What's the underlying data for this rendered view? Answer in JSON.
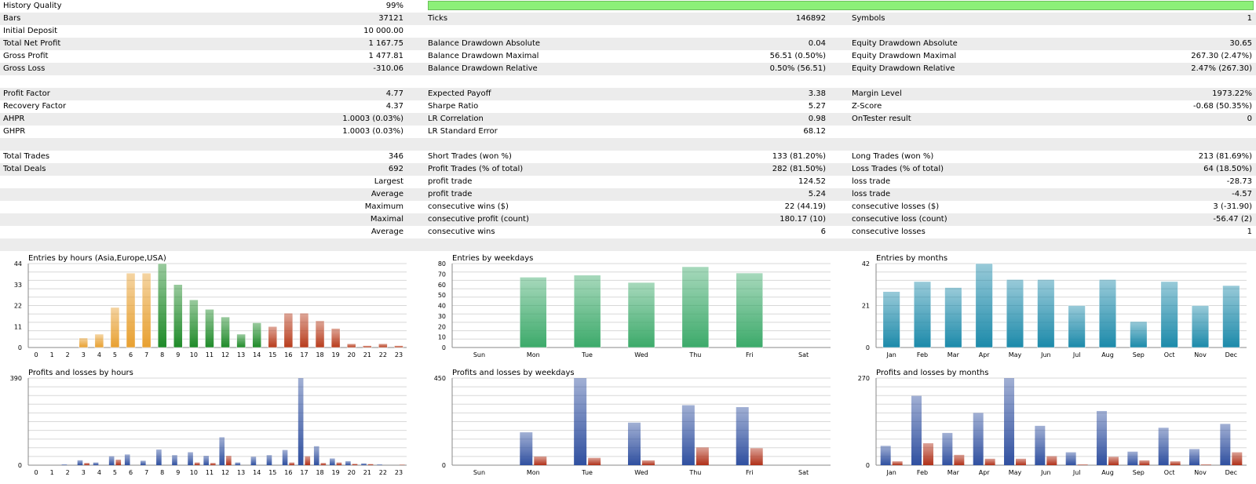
{
  "stats": {
    "rows": [
      {
        "alt": false,
        "c1": [
          "History Quality",
          "99%"
        ],
        "c2": [
          "",
          ""
        ],
        "c3": [
          "",
          ""
        ],
        "bar": true
      },
      {
        "alt": true,
        "c1": [
          "Bars",
          "37121"
        ],
        "c2": [
          "Ticks",
          "146892"
        ],
        "c3": [
          "Symbols",
          "1"
        ]
      },
      {
        "alt": false,
        "c1": [
          "Initial Deposit",
          "10 000.00"
        ],
        "c2": [
          "",
          ""
        ],
        "c3": [
          "",
          ""
        ]
      },
      {
        "alt": true,
        "c1": [
          "Total Net Profit",
          "1 167.75"
        ],
        "c2": [
          "Balance Drawdown Absolute",
          "0.04"
        ],
        "c3": [
          "Equity Drawdown Absolute",
          "30.65"
        ]
      },
      {
        "alt": false,
        "c1": [
          "Gross Profit",
          "1 477.81"
        ],
        "c2": [
          "Balance Drawdown Maximal",
          "56.51 (0.50%)"
        ],
        "c3": [
          "Equity Drawdown Maximal",
          "267.30 (2.47%)"
        ]
      },
      {
        "alt": true,
        "c1": [
          "Gross Loss",
          "-310.06"
        ],
        "c2": [
          "Balance Drawdown Relative",
          "0.50% (56.51)"
        ],
        "c3": [
          "Equity Drawdown Relative",
          "2.47% (267.30)"
        ]
      },
      {
        "alt": false,
        "c1": [
          "",
          ""
        ],
        "c2": [
          "",
          ""
        ],
        "c3": [
          "",
          ""
        ]
      },
      {
        "alt": true,
        "c1": [
          "Profit Factor",
          "4.77"
        ],
        "c2": [
          "Expected Payoff",
          "3.38"
        ],
        "c3": [
          "Margin Level",
          "1973.22%"
        ]
      },
      {
        "alt": false,
        "c1": [
          "Recovery Factor",
          "4.37"
        ],
        "c2": [
          "Sharpe Ratio",
          "5.27"
        ],
        "c3": [
          "Z-Score",
          "-0.68 (50.35%)"
        ]
      },
      {
        "alt": true,
        "c1": [
          "AHPR",
          "1.0003 (0.03%)"
        ],
        "c2": [
          "LR Correlation",
          "0.98"
        ],
        "c3": [
          "OnTester result",
          "0"
        ]
      },
      {
        "alt": false,
        "c1": [
          "GHPR",
          "1.0003 (0.03%)"
        ],
        "c2": [
          "LR Standard Error",
          "68.12"
        ],
        "c3": [
          "",
          ""
        ]
      },
      {
        "alt": true,
        "c1": [
          "",
          ""
        ],
        "c2": [
          "",
          ""
        ],
        "c3": [
          "",
          ""
        ]
      },
      {
        "alt": false,
        "c1": [
          "Total Trades",
          "346"
        ],
        "c2": [
          "Short Trades (won %)",
          "133 (81.20%)"
        ],
        "c3": [
          "Long Trades (won %)",
          "213 (81.69%)"
        ]
      },
      {
        "alt": true,
        "c1": [
          "Total Deals",
          "692"
        ],
        "c2": [
          "Profit Trades (% of total)",
          "282 (81.50%)"
        ],
        "c3": [
          "Loss Trades (% of total)",
          "64 (18.50%)"
        ]
      },
      {
        "alt": false,
        "c1": [
          "",
          "Largest"
        ],
        "c2": [
          "profit trade",
          "124.52"
        ],
        "c3": [
          "loss trade",
          "-28.73"
        ]
      },
      {
        "alt": true,
        "c1": [
          "",
          "Average"
        ],
        "c2": [
          "profit trade",
          "5.24"
        ],
        "c3": [
          "loss trade",
          "-4.57"
        ]
      },
      {
        "alt": false,
        "c1": [
          "",
          "Maximum"
        ],
        "c2": [
          "consecutive wins ($)",
          "22 (44.19)"
        ],
        "c3": [
          "consecutive losses ($)",
          "3 (-31.90)"
        ]
      },
      {
        "alt": true,
        "c1": [
          "",
          "Maximal"
        ],
        "c2": [
          "consecutive profit (count)",
          "180.17 (10)"
        ],
        "c3": [
          "consecutive loss (count)",
          "-56.47 (2)"
        ]
      },
      {
        "alt": false,
        "c1": [
          "",
          "Average"
        ],
        "c2": [
          "consecutive wins",
          "6"
        ],
        "c3": [
          "consecutive losses",
          "1"
        ]
      },
      {
        "alt": true,
        "c1": [
          "",
          ""
        ],
        "c2": [
          "",
          ""
        ],
        "c3": [
          "",
          ""
        ]
      }
    ]
  },
  "colors": {
    "bar_orange": "#e8a030",
    "bar_green": "#1e8a28",
    "bar_red": "#b83c1c",
    "bar_mint": "#3caa6a",
    "bar_teal": "#1c8aaa",
    "bar_blue": "#3050a0",
    "bar_loss": "#b03018"
  },
  "chart_data": [
    {
      "id": "entries-hours",
      "type": "bar",
      "title": "Entries by hours (Asia,Europe,USA)",
      "categories": [
        "0",
        "1",
        "2",
        "3",
        "4",
        "5",
        "6",
        "7",
        "8",
        "9",
        "10",
        "11",
        "12",
        "13",
        "14",
        "15",
        "16",
        "17",
        "18",
        "19",
        "20",
        "21",
        "22",
        "23"
      ],
      "values": [
        0,
        0,
        0,
        5,
        7,
        21,
        39,
        39,
        44,
        33,
        25,
        20,
        16,
        7,
        13,
        11,
        18,
        18,
        14,
        10,
        2,
        1,
        2,
        1
      ],
      "bar_colors": [
        "orange",
        "orange",
        "orange",
        "orange",
        "orange",
        "orange",
        "orange",
        "orange",
        "green",
        "green",
        "green",
        "green",
        "green",
        "green",
        "green",
        "red",
        "red",
        "red",
        "red",
        "red",
        "red",
        "red",
        "red",
        "red"
      ],
      "ylim": [
        0,
        44
      ],
      "yticks": [
        "0",
        "11",
        "22",
        "33",
        "44"
      ]
    },
    {
      "id": "entries-weekdays",
      "type": "bar",
      "title": "Entries by weekdays",
      "categories": [
        "Sun",
        "Mon",
        "Tue",
        "Wed",
        "Thu",
        "Fri",
        "Sat"
      ],
      "values": [
        0,
        67,
        69,
        62,
        77,
        71,
        0
      ],
      "ylim": [
        0,
        80
      ],
      "yticks": [
        "0",
        "10",
        "20",
        "30",
        "40",
        "50",
        "60",
        "70",
        "80"
      ]
    },
    {
      "id": "entries-months",
      "type": "bar",
      "title": "Entries by months",
      "categories": [
        "Jan",
        "Feb",
        "Mar",
        "Apr",
        "May",
        "Jun",
        "Jul",
        "Aug",
        "Sep",
        "Oct",
        "Nov",
        "Dec"
      ],
      "values": [
        28,
        33,
        30,
        42,
        34,
        34,
        21,
        34,
        13,
        33,
        21,
        31
      ],
      "ylim": [
        0,
        42
      ],
      "yticks": [
        "0",
        "21",
        "42"
      ]
    },
    {
      "id": "pl-hours",
      "type": "bar",
      "title": "Profits and losses by hours",
      "categories": [
        "0",
        "1",
        "2",
        "3",
        "4",
        "5",
        "6",
        "7",
        "8",
        "9",
        "10",
        "11",
        "12",
        "13",
        "14",
        "15",
        "16",
        "17",
        "18",
        "19",
        "20",
        "21",
        "22",
        "23"
      ],
      "series": [
        {
          "values": [
            0,
            0,
            3,
            22,
            12,
            40,
            48,
            20,
            70,
            45,
            58,
            42,
            125,
            12,
            38,
            45,
            68,
            390,
            85,
            30,
            18,
            8,
            3,
            0
          ]
        },
        {
          "values": [
            0,
            0,
            0,
            10,
            0,
            25,
            0,
            0,
            0,
            0,
            12,
            10,
            42,
            0,
            0,
            0,
            12,
            40,
            10,
            12,
            6,
            5,
            0,
            2
          ]
        }
      ],
      "ylim": [
        0,
        390
      ],
      "yticks": [
        "0",
        "390"
      ]
    },
    {
      "id": "pl-weekdays",
      "type": "bar",
      "title": "Profits and losses by weekdays",
      "categories": [
        "Sun",
        "Mon",
        "Tue",
        "Wed",
        "Thu",
        "Fri",
        "Sat"
      ],
      "series": [
        {
          "values": [
            0,
            170,
            450,
            220,
            310,
            300,
            0
          ]
        },
        {
          "values": [
            0,
            45,
            38,
            25,
            92,
            88,
            0
          ]
        }
      ],
      "ylim": [
        0,
        450
      ],
      "yticks": [
        "0",
        "450"
      ]
    },
    {
      "id": "pl-months",
      "type": "bar",
      "title": "Profits and losses by months",
      "categories": [
        "Jan",
        "Feb",
        "Mar",
        "Apr",
        "May",
        "Jun",
        "Jul",
        "Aug",
        "Sep",
        "Oct",
        "Nov",
        "Dec"
      ],
      "series": [
        {
          "values": [
            60,
            215,
            100,
            162,
            270,
            122,
            40,
            168,
            42,
            116,
            50,
            128
          ]
        },
        {
          "values": [
            12,
            68,
            32,
            20,
            20,
            28,
            2,
            26,
            15,
            12,
            2,
            40
          ]
        }
      ],
      "ylim": [
        0,
        270
      ],
      "yticks": [
        "0",
        "270"
      ]
    }
  ]
}
